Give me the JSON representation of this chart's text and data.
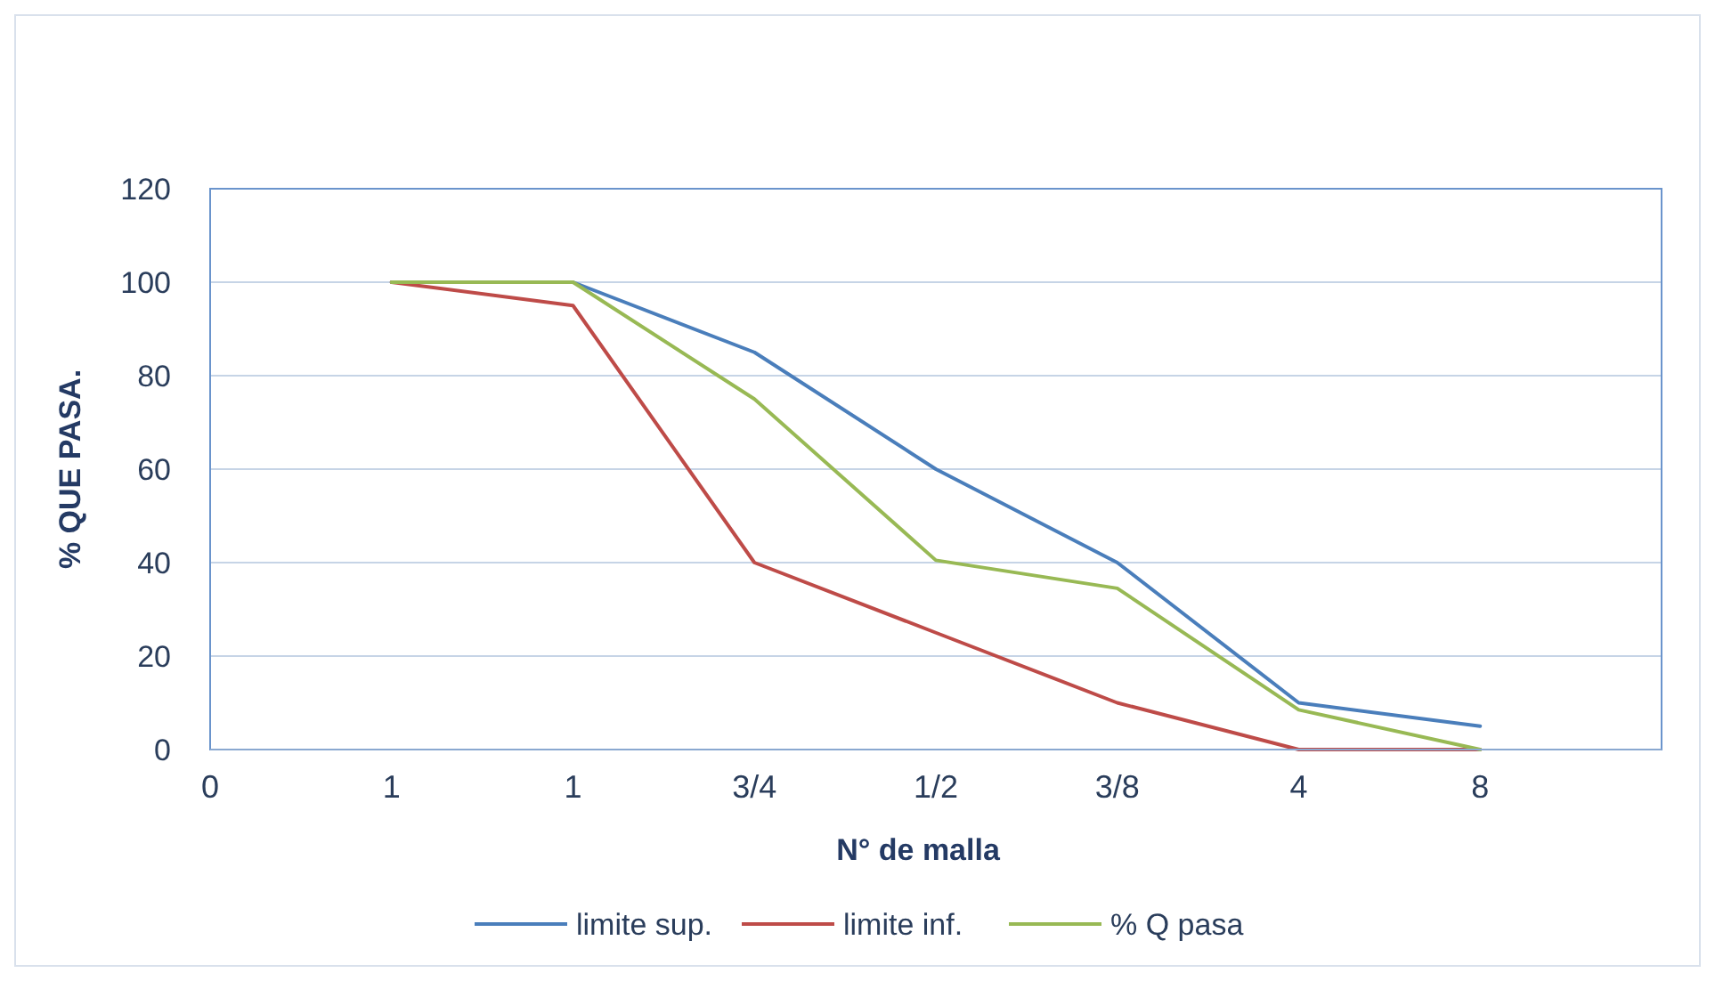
{
  "chart_data": {
    "type": "line",
    "xlabel": "N° de malla",
    "ylabel": "% QUE PASA.",
    "categories": [
      "0",
      "1",
      "1",
      "3/4",
      "1/2",
      "3/8",
      "4",
      "8",
      null
    ],
    "series": [
      {
        "name": "limite sup.",
        "color": "#4a7ebb",
        "values": [
          null,
          100,
          100,
          85,
          60,
          40,
          10,
          5,
          null
        ]
      },
      {
        "name": "limite inf.",
        "color": "#be4b48",
        "values": [
          null,
          100,
          95,
          40,
          25,
          10,
          0,
          0,
          null
        ]
      },
      {
        "name": "% Q pasa",
        "color": "#98b954",
        "values": [
          null,
          100,
          100,
          75,
          40.5,
          34.5,
          8.5,
          0,
          null
        ]
      }
    ],
    "ylim": [
      0,
      120
    ],
    "yticks": [
      0,
      20,
      40,
      60,
      80,
      100,
      120
    ],
    "grid": "y",
    "legend": "bottom",
    "marker": "none",
    "line_style": "solid"
  }
}
